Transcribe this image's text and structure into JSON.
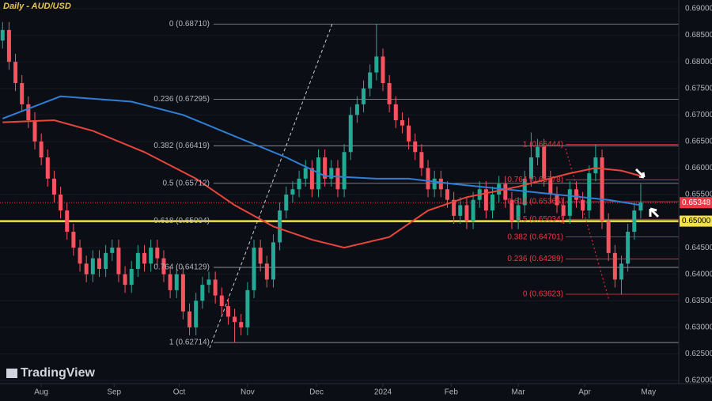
{
  "chart_data": {
    "type": "candlestick",
    "title": "Daily - AUD/USD",
    "watermark": "TradingView",
    "up_color": "#22ab94",
    "down_color": "#f7525f",
    "xlim": [
      -0.4,
      104.9
    ],
    "xticks": [
      {
        "value": 6,
        "label": "Aug"
      },
      {
        "value": 17.3,
        "label": "Sep"
      },
      {
        "value": 27.4,
        "label": "Oct"
      },
      {
        "value": 38,
        "label": "Nov"
      },
      {
        "value": 48.7,
        "label": "Dec"
      },
      {
        "value": 59,
        "label": "2024"
      },
      {
        "value": 69.6,
        "label": "Feb"
      },
      {
        "value": 80,
        "label": "Mar"
      },
      {
        "value": 90.3,
        "label": "Apr"
      },
      {
        "value": 100.2,
        "label": "May"
      }
    ],
    "ylim": [
      0.62,
      0.69
    ],
    "yticks": [
      {
        "value": 0.69,
        "label": "0.69000"
      },
      {
        "value": 0.685,
        "label": "0.68500"
      },
      {
        "value": 0.68,
        "label": "0.68000"
      },
      {
        "value": 0.675,
        "label": "0.67500"
      },
      {
        "value": 0.67,
        "label": "0.67000"
      },
      {
        "value": 0.665,
        "label": "0.66500"
      },
      {
        "value": 0.66,
        "label": "0.66000"
      },
      {
        "value": 0.655,
        "label": "0.65500"
      },
      {
        "value": 0.645,
        "label": "0.64500"
      },
      {
        "value": 0.64,
        "label": "0.64000"
      },
      {
        "value": 0.635,
        "label": "0.63500"
      },
      {
        "value": 0.63,
        "label": "0.63000"
      },
      {
        "value": 0.625,
        "label": "0.62500"
      },
      {
        "value": 0.62,
        "label": "0.62000"
      }
    ],
    "open": [
      0.684,
      0.686,
      0.68,
      0.676,
      0.672,
      0.669,
      0.665,
      0.662,
      0.658,
      0.655,
      0.652,
      0.648,
      0.645,
      0.642,
      0.64,
      0.643,
      0.641,
      0.644,
      0.645,
      0.64,
      0.638,
      0.641,
      0.644,
      0.642,
      0.645,
      0.643,
      0.64,
      0.637,
      0.64,
      0.633,
      0.63,
      0.635,
      0.638,
      0.639,
      0.636,
      0.634,
      0.632,
      0.631,
      0.63,
      0.637,
      0.645,
      0.642,
      0.639,
      0.646,
      0.652,
      0.655,
      0.656,
      0.658,
      0.66,
      0.656,
      0.662,
      0.658,
      0.66,
      0.656,
      0.663,
      0.67,
      0.672,
      0.675,
      0.678,
      0.681,
      0.676,
      0.672,
      0.669,
      0.668,
      0.665,
      0.663,
      0.66,
      0.656,
      0.658,
      0.656,
      0.654,
      0.651,
      0.653,
      0.65,
      0.654,
      0.656,
      0.652,
      0.655,
      0.657,
      0.654,
      0.65,
      0.653,
      0.658,
      0.662,
      0.664,
      0.658,
      0.655,
      0.653,
      0.651,
      0.656,
      0.654,
      0.652,
      0.659,
      0.662,
      0.65,
      0.644,
      0.639,
      0.642,
      0.648,
      0.652
    ],
    "high": [
      0.6875,
      0.6875,
      0.6815,
      0.6775,
      0.6735,
      0.6705,
      0.6665,
      0.6635,
      0.6595,
      0.6565,
      0.6535,
      0.6495,
      0.6465,
      0.6435,
      0.6445,
      0.6445,
      0.6455,
      0.6465,
      0.6465,
      0.6415,
      0.6425,
      0.6455,
      0.6455,
      0.6465,
      0.6465,
      0.6445,
      0.6415,
      0.6415,
      0.6415,
      0.6345,
      0.6365,
      0.6395,
      0.6405,
      0.6405,
      0.6375,
      0.6355,
      0.6335,
      0.6325,
      0.6385,
      0.6465,
      0.6465,
      0.6435,
      0.6475,
      0.6535,
      0.6565,
      0.6575,
      0.6595,
      0.6615,
      0.6615,
      0.6635,
      0.6635,
      0.6615,
      0.6615,
      0.6645,
      0.6715,
      0.6735,
      0.6765,
      0.6795,
      0.6871,
      0.6825,
      0.6775,
      0.6735,
      0.6705,
      0.6695,
      0.6665,
      0.6645,
      0.6615,
      0.6595,
      0.6595,
      0.6575,
      0.6555,
      0.6545,
      0.6545,
      0.6555,
      0.6575,
      0.6575,
      0.6565,
      0.6585,
      0.6585,
      0.6555,
      0.6545,
      0.6595,
      0.6667,
      0.6655,
      0.6655,
      0.6595,
      0.6565,
      0.6545,
      0.6575,
      0.6575,
      0.6555,
      0.6605,
      0.6644,
      0.6635,
      0.6515,
      0.6455,
      0.6435,
      0.6495,
      0.6535,
      0.657
    ],
    "low": [
      0.6825,
      0.6785,
      0.6745,
      0.6705,
      0.6675,
      0.6635,
      0.6605,
      0.6565,
      0.6535,
      0.6505,
      0.6465,
      0.6435,
      0.6405,
      0.6385,
      0.6385,
      0.6395,
      0.6395,
      0.6425,
      0.6385,
      0.6365,
      0.6365,
      0.6395,
      0.6405,
      0.6405,
      0.6415,
      0.6385,
      0.6355,
      0.6355,
      0.6315,
      0.6285,
      0.6285,
      0.6335,
      0.6365,
      0.6345,
      0.6325,
      0.6305,
      0.6271,
      0.6285,
      0.6285,
      0.6355,
      0.6405,
      0.6375,
      0.6375,
      0.6445,
      0.6505,
      0.6535,
      0.6545,
      0.6565,
      0.6545,
      0.6545,
      0.6565,
      0.6565,
      0.6545,
      0.6545,
      0.6615,
      0.6685,
      0.6705,
      0.6735,
      0.6765,
      0.6745,
      0.6705,
      0.6675,
      0.6665,
      0.6635,
      0.6615,
      0.6585,
      0.6545,
      0.6545,
      0.6545,
      0.6525,
      0.6495,
      0.6495,
      0.6485,
      0.6485,
      0.6525,
      0.6505,
      0.6505,
      0.6535,
      0.6525,
      0.6485,
      0.6485,
      0.6515,
      0.6565,
      0.6605,
      0.6565,
      0.6535,
      0.6515,
      0.6495,
      0.6495,
      0.6525,
      0.6505,
      0.6505,
      0.6575,
      0.6485,
      0.6425,
      0.6375,
      0.6362,
      0.6405,
      0.6465,
      0.6505
    ],
    "close": [
      0.686,
      0.68,
      0.676,
      0.672,
      0.669,
      0.665,
      0.662,
      0.658,
      0.655,
      0.652,
      0.648,
      0.645,
      0.642,
      0.64,
      0.643,
      0.641,
      0.644,
      0.645,
      0.64,
      0.638,
      0.641,
      0.644,
      0.642,
      0.645,
      0.643,
      0.64,
      0.637,
      0.64,
      0.633,
      0.63,
      0.635,
      0.638,
      0.639,
      0.636,
      0.634,
      0.632,
      0.631,
      0.63,
      0.637,
      0.645,
      0.642,
      0.639,
      0.646,
      0.652,
      0.655,
      0.656,
      0.658,
      0.66,
      0.656,
      0.662,
      0.658,
      0.66,
      0.656,
      0.663,
      0.67,
      0.672,
      0.675,
      0.678,
      0.681,
      0.676,
      0.672,
      0.669,
      0.668,
      0.665,
      0.663,
      0.66,
      0.656,
      0.658,
      0.656,
      0.654,
      0.651,
      0.653,
      0.65,
      0.654,
      0.656,
      0.652,
      0.655,
      0.657,
      0.654,
      0.65,
      0.653,
      0.658,
      0.662,
      0.664,
      0.658,
      0.655,
      0.653,
      0.651,
      0.656,
      0.654,
      0.652,
      0.659,
      0.662,
      0.65,
      0.644,
      0.639,
      0.642,
      0.648,
      0.652,
      0.6535
    ],
    "lines": [
      {
        "color": "#2f7fd6",
        "x": [
          0,
          9,
          20,
          28,
          36,
          44,
          50,
          58,
          63,
          70,
          78,
          86,
          94,
          99
        ],
        "values": [
          0.6693,
          0.6735,
          0.6725,
          0.67,
          0.666,
          0.662,
          0.6585,
          0.658,
          0.658,
          0.657,
          0.656,
          0.655,
          0.654,
          0.653
        ]
      },
      {
        "color": "#e8453c",
        "x": [
          0,
          8,
          14,
          22,
          30,
          36,
          42,
          48,
          53,
          60,
          66,
          72,
          80,
          88,
          92,
          96,
          99
        ],
        "values": [
          0.6686,
          0.669,
          0.667,
          0.663,
          0.658,
          0.653,
          0.649,
          0.6465,
          0.645,
          0.647,
          0.652,
          0.6545,
          0.6565,
          0.659,
          0.66,
          0.6595,
          0.6585
        ]
      }
    ],
    "fib_sets": [
      {
        "color": "#b2b5be",
        "levels": [
          {
            "value": 0.6871,
            "label": "0 (0.68710)"
          },
          {
            "value": 0.67295,
            "label": "0.236 (0.67295)"
          },
          {
            "value": 0.66419,
            "label": "0.382 (0.66419)"
          },
          {
            "value": 0.65712,
            "label": "0.5 (0.65712)"
          },
          {
            "value": 0.65004,
            "label": "0.618 (0.65004)"
          },
          {
            "value": 0.64129,
            "label": "0.764 (0.64129)"
          },
          {
            "value": 0.62714,
            "label": "1 (0.62714)"
          }
        ]
      },
      {
        "color": "#f23645",
        "levels": [
          {
            "value": 0.66444,
            "label": "1 (0.66444)"
          },
          {
            "value": 0.65778,
            "label": "0.764 (0.65778)"
          },
          {
            "value": 0.65366,
            "label": "0.618 (0.65366)"
          },
          {
            "value": 0.65034,
            "label": "0.5 (0.65034)"
          },
          {
            "value": 0.64701,
            "label": "0.382 (0.64701)"
          },
          {
            "value": 0.64289,
            "label": "0.236 (0.64289)"
          },
          {
            "value": 0.63623,
            "label": "0 (0.63623)"
          }
        ]
      }
    ],
    "key_level": {
      "value": 0.65,
      "label": "0.65000",
      "color": "#f5e24b"
    },
    "last_price": {
      "value": 0.65348,
      "label": "0.65348",
      "color": "#f23645"
    }
  }
}
